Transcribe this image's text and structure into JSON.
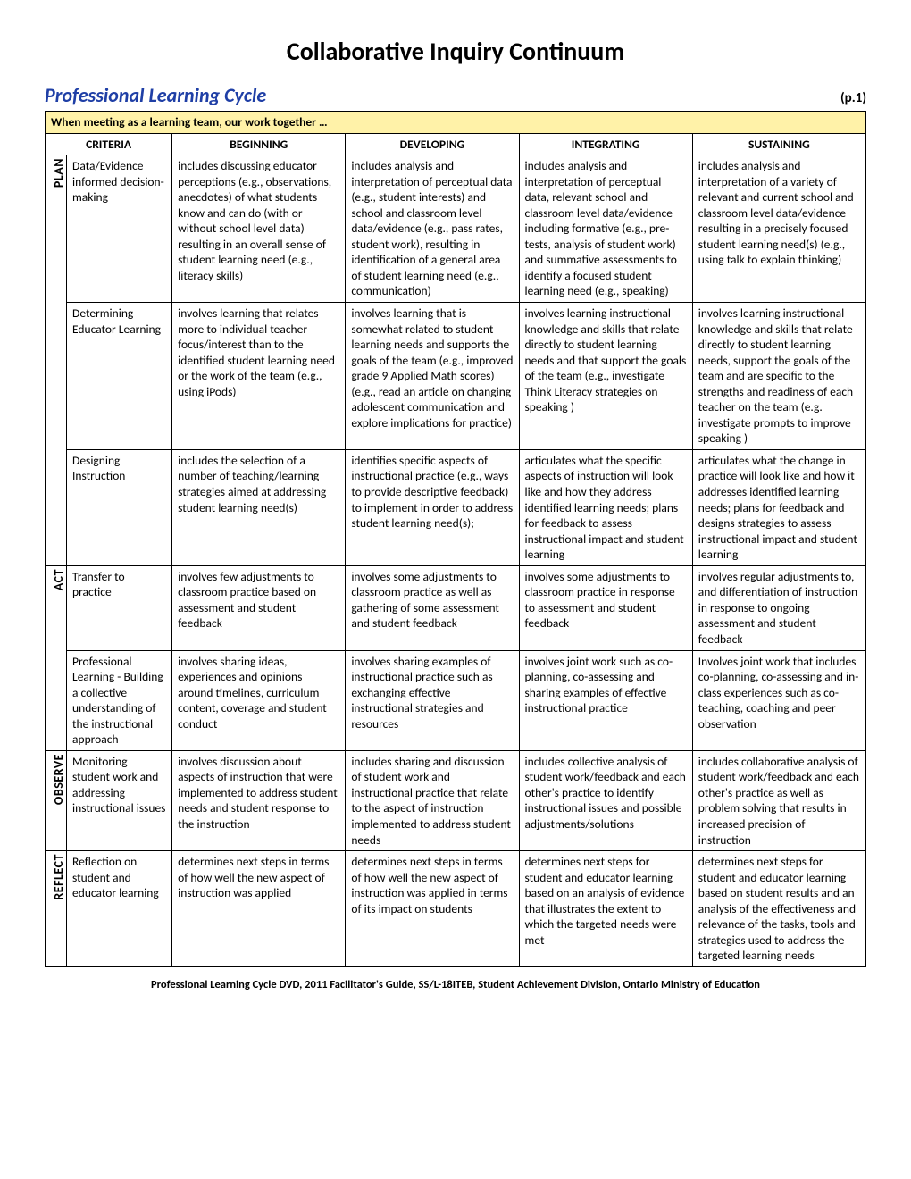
{
  "title": "Collaborative Inquiry Continuum",
  "subtitle": "Professional Learning Cycle",
  "page_label": "(p.1)",
  "banner": "When meeting as a learning team, our work together …",
  "headers": {
    "criteria": "CRITERIA",
    "beginning": "BEGINNING",
    "developing": "DEVELOPING",
    "integrating": "INTEGRATING",
    "sustaining": "SUSTAINING"
  },
  "phases": {
    "plan": "PLAN",
    "act": "ACT",
    "observe": "OBSERVE",
    "reflect": "REFLECT"
  },
  "rows": {
    "r1": {
      "criteria": "Data/Evidence informed decision-making",
      "beginning": "includes discussing educator perceptions (e.g., observations, anecdotes) of what students know and can do (with or without school level data) resulting in an overall sense of student learning need (e.g., literacy skills)",
      "developing": "includes analysis and interpretation of perceptual data (e.g., student interests) and school and classroom level data/evidence (e.g., pass rates, student work), resulting in identification of a general area of student learning need (e.g., communication)",
      "integrating": "includes analysis and interpretation of perceptual data, relevant school and classroom level data/evidence including formative (e.g.,  pre-tests, analysis of student work) and summative assessments to identify a focused student learning need (e.g., speaking)",
      "sustaining": "includes analysis and interpretation of a variety of relevant and current school and classroom level data/evidence resulting in a precisely focused student learning need(s) (e.g., using talk to explain thinking)"
    },
    "r2": {
      "criteria": "Determining Educator Learning",
      "beginning": "involves learning that relates more to individual teacher focus/interest than to the identified student learning need or the work of the team (e.g., using  iPods)",
      "developing": "involves learning that is somewhat related to student learning needs and supports the goals of the team  (e.g., improved grade 9 Applied Math scores) (e.g., read an article on changing adolescent communication and explore implications for practice)",
      "integrating": "involves learning instructional knowledge and skills that relate directly to student learning needs and that support the goals of the team (e.g., investigate Think Literacy strategies on speaking )",
      "sustaining": "involves learning instructional knowledge and skills that relate directly to student learning needs, support the goals of the team and are specific to the strengths and readiness of each teacher on the team (e.g. investigate prompts to improve speaking  )"
    },
    "r3": {
      "criteria": "Designing Instruction",
      "beginning": "includes the selection of a number of teaching/learning strategies aimed at addressing student learning need(s)",
      "developing": "identifies  specific aspects of instructional  practice (e.g., ways to provide descriptive feedback) to implement in order to address student learning need(s);",
      "integrating": "articulates what the specific aspects of instruction will look like and how they address identified learning needs; plans for feedback to assess instructional impact and student learning",
      "sustaining": "articulates what the change in practice will look like and how it addresses identified learning needs; plans for feedback and designs strategies to assess instructional impact and student learning"
    },
    "r4": {
      "criteria": "Transfer to practice",
      "beginning": "involves  few adjustments to classroom practice based on assessment and student feedback",
      "developing": "involves some adjustments to classroom practice as well as gathering of some assessment and  student feedback",
      "integrating": "involves some adjustments to classroom practice in response to assessment and student feedback",
      "sustaining": "involves regular adjustments to, and differentiation of  instruction  in response to ongoing assessment and student feedback"
    },
    "r5": {
      "criteria": "Professional Learning - Building a collective understanding of the  instructional approach",
      "beginning": "involves sharing ideas, experiences and opinions around timelines, curriculum content, coverage and student conduct",
      "developing": "involves sharing examples of instructional practice such as exchanging effective instructional strategies and resources",
      "integrating": "involves joint work such as co-planning, co-assessing and sharing examples of effective instructional practice",
      "sustaining": "Involves joint work that includes co-planning, co-assessing and in-class experiences such as co-teaching, coaching and peer observation"
    },
    "r6": {
      "criteria": "Monitoring student  work and addressing instructional issues",
      "beginning": "involves discussion about aspects of instruction that were implemented to address student needs and student response to the instruction",
      "developing": "includes sharing and discussion of student work and instructional practice that relate to the aspect of instruction implemented to address student needs",
      "integrating": "includes collective analysis of student work/feedback and each other's practice to identify instructional issues and possible adjustments/solutions",
      "sustaining": "includes collaborative analysis of student work/feedback and each other's practice as well as problem solving that results in increased precision of instruction"
    },
    "r7": {
      "criteria": "Reflection on student and educator learning",
      "beginning": "determines next steps in terms of  how well the new aspect of instruction was applied",
      "developing": "determines next steps in terms of  how well the new aspect of instruction was applied in terms of its impact on students",
      "integrating": "determines next steps for student and educator learning based on an analysis of evidence that illustrates the  extent to which the targeted needs were met",
      "sustaining": "determines next steps for student and educator learning based on student results  and an analysis of the effectiveness and relevance of the tasks, tools and strategies used to address the targeted learning needs"
    }
  },
  "footer": "Professional Learning Cycle DVD, 2011 Facilitator's Guide, SS/L-18ITEB, Student Achievement Division, Ontario Ministry of Education"
}
